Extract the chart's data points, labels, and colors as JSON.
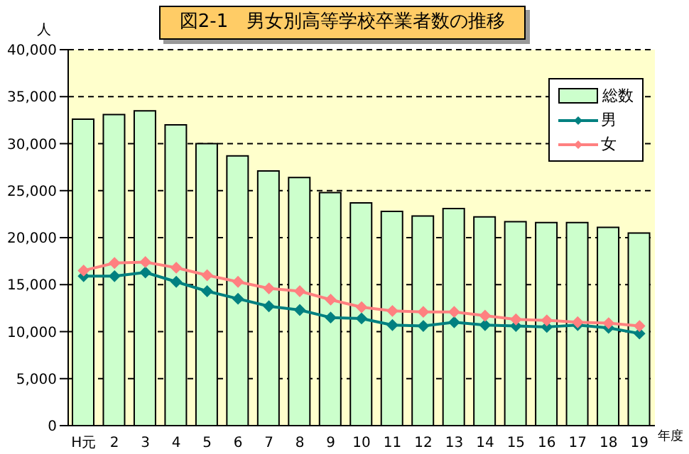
{
  "chart_data": {
    "type": "bar",
    "title": "図2-1　男女別高等学校卒業者数の推移",
    "ylabel": "人",
    "xlabel": "年度",
    "categories": [
      "H元",
      "2",
      "3",
      "4",
      "5",
      "6",
      "7",
      "8",
      "9",
      "10",
      "11",
      "12",
      "13",
      "14",
      "15",
      "16",
      "17",
      "18",
      "19"
    ],
    "series": [
      {
        "name": "総数",
        "color": "#ccffcc",
        "values": [
          32600,
          33100,
          33500,
          32000,
          30000,
          28700,
          27100,
          26400,
          24800,
          23700,
          22800,
          22300,
          23100,
          22200,
          21700,
          21600,
          21600,
          21100,
          20500
        ]
      },
      {
        "name": "男",
        "type": "line",
        "color": "#008080",
        "values": [
          15900,
          15900,
          16300,
          15300,
          14300,
          13500,
          12700,
          12300,
          11500,
          11400,
          10700,
          10600,
          11000,
          10700,
          10600,
          10500,
          10700,
          10400,
          9800
        ]
      },
      {
        "name": "女",
        "type": "line",
        "color": "#ff8080",
        "values": [
          16500,
          17300,
          17400,
          16800,
          16000,
          15300,
          14600,
          14300,
          13400,
          12600,
          12200,
          12100,
          12100,
          11700,
          11300,
          11200,
          11000,
          10900,
          10600
        ]
      }
    ],
    "ylim": [
      0,
      40000
    ],
    "yticks": [
      {
        "value": 0,
        "label": "0"
      },
      {
        "value": 5000,
        "label": "5,000"
      },
      {
        "value": 10000,
        "label": "10,000"
      },
      {
        "value": 15000,
        "label": "15,000"
      },
      {
        "value": 20000,
        "label": "20,000"
      },
      {
        "value": 25000,
        "label": "25,000"
      },
      {
        "value": 30000,
        "label": "30,000"
      },
      {
        "value": 35000,
        "label": "35,000"
      },
      {
        "value": 40000,
        "label": "40,000"
      }
    ],
    "grid": "y",
    "legend": "top right",
    "marker": "diamond",
    "line_style": "solid"
  }
}
